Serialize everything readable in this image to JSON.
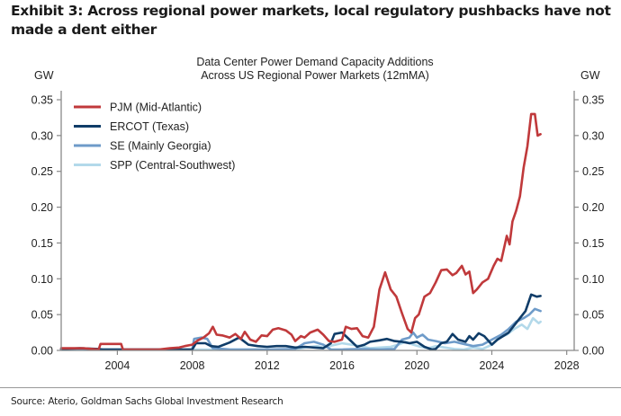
{
  "exhibit": {
    "title": "Exhibit 3: Across regional power markets, local regulatory pushbacks have not made a dent either",
    "source": "Source: Aterio, Goldman Sachs Global Investment Research"
  },
  "chart_data": {
    "type": "line",
    "title": "Data Center Power Demand Capacity Additions",
    "subtitle": "Across US Regional Power Markets (12mMA)",
    "xlabel": "",
    "ylabel": "GW",
    "ylabel_right": "GW",
    "xlim": [
      2001.0,
      2028.4
    ],
    "ylim": [
      0,
      0.35
    ],
    "x_ticks": [
      2004,
      2008,
      2012,
      2016,
      2020,
      2024,
      2028
    ],
    "y_ticks": [
      0.0,
      0.05,
      0.1,
      0.15,
      0.2,
      0.25,
      0.3,
      0.35
    ],
    "y_tick_labels": [
      "0.00",
      "0.05",
      "0.10",
      "0.15",
      "0.20",
      "0.25",
      "0.30",
      "0.35"
    ],
    "x_tick_labels": [
      "2004",
      "2008",
      "2012",
      "2016",
      "2020",
      "2024",
      "2028"
    ],
    "grid": false,
    "dual_y_axis": true,
    "legend_position": "top-left",
    "series": [
      {
        "name": "PJM (Mid-Atlantic)",
        "color": "#c0393b",
        "points": [
          [
            2001.0,
            0.003
          ],
          [
            2002.2,
            0.003
          ],
          [
            2003.0,
            0.001
          ],
          [
            2003.1,
            0.009
          ],
          [
            2004.2,
            0.009
          ],
          [
            2004.3,
            0.001
          ],
          [
            2006.2,
            0.001
          ],
          [
            2006.8,
            0.003
          ],
          [
            2007.3,
            0.004
          ],
          [
            2007.6,
            0.006
          ],
          [
            2008.0,
            0.008
          ],
          [
            2008.3,
            0.014
          ],
          [
            2008.6,
            0.018
          ],
          [
            2008.9,
            0.024
          ],
          [
            2009.1,
            0.033
          ],
          [
            2009.3,
            0.022
          ],
          [
            2009.6,
            0.021
          ],
          [
            2010.0,
            0.018
          ],
          [
            2010.3,
            0.023
          ],
          [
            2010.6,
            0.016
          ],
          [
            2010.8,
            0.026
          ],
          [
            2011.1,
            0.015
          ],
          [
            2011.4,
            0.012
          ],
          [
            2011.7,
            0.021
          ],
          [
            2012.0,
            0.02
          ],
          [
            2012.3,
            0.029
          ],
          [
            2012.6,
            0.031
          ],
          [
            2013.0,
            0.028
          ],
          [
            2013.3,
            0.022
          ],
          [
            2013.5,
            0.013
          ],
          [
            2013.8,
            0.02
          ],
          [
            2014.0,
            0.018
          ],
          [
            2014.3,
            0.025
          ],
          [
            2014.7,
            0.029
          ],
          [
            2015.0,
            0.022
          ],
          [
            2015.3,
            0.013
          ],
          [
            2015.6,
            0.012
          ],
          [
            2016.0,
            0.015
          ],
          [
            2016.2,
            0.033
          ],
          [
            2016.5,
            0.03
          ],
          [
            2016.8,
            0.031
          ],
          [
            2017.1,
            0.02
          ],
          [
            2017.4,
            0.018
          ],
          [
            2017.7,
            0.033
          ],
          [
            2018.0,
            0.085
          ],
          [
            2018.3,
            0.109
          ],
          [
            2018.6,
            0.085
          ],
          [
            2018.9,
            0.075
          ],
          [
            2019.2,
            0.052
          ],
          [
            2019.5,
            0.03
          ],
          [
            2019.7,
            0.025
          ],
          [
            2019.9,
            0.045
          ],
          [
            2020.1,
            0.05
          ],
          [
            2020.4,
            0.075
          ],
          [
            2020.7,
            0.08
          ],
          [
            2021.0,
            0.095
          ],
          [
            2021.3,
            0.112
          ],
          [
            2021.6,
            0.113
          ],
          [
            2021.9,
            0.105
          ],
          [
            2022.1,
            0.108
          ],
          [
            2022.4,
            0.118
          ],
          [
            2022.6,
            0.106
          ],
          [
            2022.8,
            0.11
          ],
          [
            2023.0,
            0.08
          ],
          [
            2023.2,
            0.085
          ],
          [
            2023.5,
            0.095
          ],
          [
            2023.8,
            0.1
          ],
          [
            2024.1,
            0.118
          ],
          [
            2024.3,
            0.128
          ],
          [
            2024.5,
            0.125
          ],
          [
            2024.8,
            0.16
          ],
          [
            2024.95,
            0.148
          ],
          [
            2025.1,
            0.18
          ],
          [
            2025.3,
            0.195
          ],
          [
            2025.5,
            0.215
          ],
          [
            2025.7,
            0.255
          ],
          [
            2025.9,
            0.285
          ],
          [
            2026.1,
            0.33
          ],
          [
            2026.3,
            0.33
          ],
          [
            2026.45,
            0.3
          ],
          [
            2026.6,
            0.302
          ]
        ]
      },
      {
        "name": "ERCOT (Texas)",
        "color": "#0f3c68",
        "points": [
          [
            2001.0,
            0.002
          ],
          [
            2002.0,
            0.003
          ],
          [
            2003.0,
            0.002
          ],
          [
            2003.2,
            0.0
          ],
          [
            2008.0,
            0.0
          ],
          [
            2008.2,
            0.01
          ],
          [
            2008.7,
            0.01
          ],
          [
            2009.0,
            0.006
          ],
          [
            2009.4,
            0.005
          ],
          [
            2010.0,
            0.011
          ],
          [
            2010.5,
            0.018
          ],
          [
            2011.0,
            0.008
          ],
          [
            2011.5,
            0.006
          ],
          [
            2012.0,
            0.005
          ],
          [
            2012.5,
            0.006
          ],
          [
            2013.0,
            0.006
          ],
          [
            2013.5,
            0.004
          ],
          [
            2014.0,
            0.005
          ],
          [
            2015.0,
            0.003
          ],
          [
            2015.4,
            0.01
          ],
          [
            2015.6,
            0.023
          ],
          [
            2016.0,
            0.025
          ],
          [
            2016.4,
            0.015
          ],
          [
            2016.8,
            0.005
          ],
          [
            2017.2,
            0.008
          ],
          [
            2017.5,
            0.012
          ],
          [
            2018.0,
            0.014
          ],
          [
            2018.4,
            0.016
          ],
          [
            2018.8,
            0.013
          ],
          [
            2019.2,
            0.012
          ],
          [
            2019.6,
            0.01
          ],
          [
            2020.0,
            0.012
          ],
          [
            2020.4,
            0.005
          ],
          [
            2020.8,
            -0.005
          ],
          [
            2021.0,
            0.002
          ],
          [
            2021.3,
            0.01
          ],
          [
            2021.6,
            0.012
          ],
          [
            2021.9,
            0.023
          ],
          [
            2022.2,
            0.015
          ],
          [
            2022.6,
            0.012
          ],
          [
            2022.8,
            0.02
          ],
          [
            2023.0,
            0.015
          ],
          [
            2023.3,
            0.024
          ],
          [
            2023.6,
            0.02
          ],
          [
            2024.0,
            0.008
          ],
          [
            2024.3,
            0.015
          ],
          [
            2024.6,
            0.02
          ],
          [
            2024.9,
            0.025
          ],
          [
            2025.2,
            0.035
          ],
          [
            2025.5,
            0.045
          ],
          [
            2025.8,
            0.055
          ],
          [
            2026.1,
            0.078
          ],
          [
            2026.4,
            0.075
          ],
          [
            2026.6,
            0.076
          ]
        ]
      },
      {
        "name": "SE (Mainly Georgia)",
        "color": "#6e9bc9",
        "points": [
          [
            2001.0,
            0.0
          ],
          [
            2008.0,
            0.0
          ],
          [
            2008.1,
            0.016
          ],
          [
            2008.5,
            0.018
          ],
          [
            2008.8,
            0.016
          ],
          [
            2009.1,
            0.003
          ],
          [
            2010.0,
            0.001
          ],
          [
            2012.0,
            0.001
          ],
          [
            2013.5,
            0.002
          ],
          [
            2014.0,
            0.01
          ],
          [
            2014.5,
            0.012
          ],
          [
            2015.0,
            0.008
          ],
          [
            2015.4,
            0.001
          ],
          [
            2016.0,
            0.001
          ],
          [
            2017.0,
            0.002
          ],
          [
            2018.0,
            0.001
          ],
          [
            2018.8,
            0.002
          ],
          [
            2019.2,
            0.015
          ],
          [
            2019.6,
            0.018
          ],
          [
            2019.8,
            0.025
          ],
          [
            2020.0,
            0.018
          ],
          [
            2020.3,
            0.022
          ],
          [
            2020.6,
            0.015
          ],
          [
            2021.0,
            0.013
          ],
          [
            2021.5,
            0.01
          ],
          [
            2022.0,
            0.012
          ],
          [
            2022.5,
            0.009
          ],
          [
            2023.0,
            0.006
          ],
          [
            2023.5,
            0.008
          ],
          [
            2024.0,
            0.015
          ],
          [
            2024.5,
            0.022
          ],
          [
            2024.9,
            0.03
          ],
          [
            2025.3,
            0.04
          ],
          [
            2025.7,
            0.045
          ],
          [
            2026.0,
            0.05
          ],
          [
            2026.3,
            0.058
          ],
          [
            2026.6,
            0.055
          ]
        ]
      },
      {
        "name": "SPP (Central-Southwest)",
        "color": "#b3d9ea",
        "points": [
          [
            2001.0,
            0.0
          ],
          [
            2012.0,
            0.0
          ],
          [
            2013.5,
            0.001
          ],
          [
            2014.0,
            0.004
          ],
          [
            2014.7,
            0.006
          ],
          [
            2015.0,
            0.004
          ],
          [
            2015.5,
            0.007
          ],
          [
            2016.0,
            0.01
          ],
          [
            2016.5,
            0.008
          ],
          [
            2017.0,
            0.006
          ],
          [
            2017.5,
            0.003
          ],
          [
            2018.0,
            0.004
          ],
          [
            2018.6,
            0.005
          ],
          [
            2019.0,
            0.008
          ],
          [
            2019.4,
            0.012
          ],
          [
            2019.8,
            0.008
          ],
          [
            2020.2,
            0.005
          ],
          [
            2020.6,
            0.003
          ],
          [
            2021.0,
            0.006
          ],
          [
            2021.5,
            0.004
          ],
          [
            2022.0,
            0.002
          ],
          [
            2022.5,
            0.001
          ],
          [
            2023.0,
            0.004
          ],
          [
            2023.5,
            0.002
          ],
          [
            2024.0,
            0.008
          ],
          [
            2024.4,
            0.018
          ],
          [
            2024.8,
            0.022
          ],
          [
            2025.2,
            0.03
          ],
          [
            2025.6,
            0.036
          ],
          [
            2025.9,
            0.03
          ],
          [
            2026.2,
            0.045
          ],
          [
            2026.5,
            0.038
          ],
          [
            2026.6,
            0.04
          ]
        ]
      }
    ]
  }
}
